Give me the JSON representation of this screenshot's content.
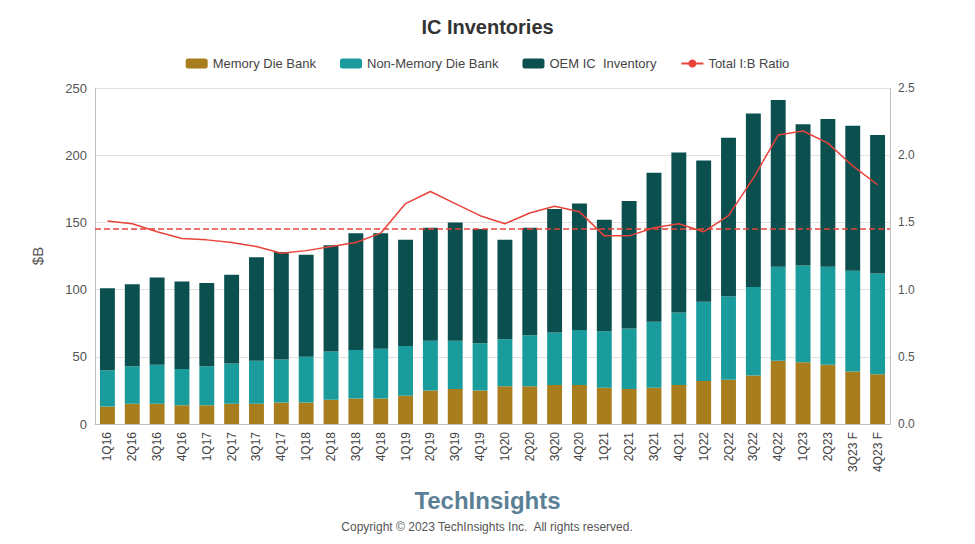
{
  "chart_data": {
    "type": "bar",
    "title": "IC Inventories",
    "y_label": "$B",
    "annotations": [
      "TechInsights",
      "Copyright © 2023 TechInsights Inc.  All rights reserved."
    ],
    "categories": [
      "1Q16",
      "2Q16",
      "3Q16",
      "4Q16",
      "1Q17",
      "2Q17",
      "3Q17",
      "4Q17",
      "1Q18",
      "2Q18",
      "3Q18",
      "4Q18",
      "1Q19",
      "2Q19",
      "3Q19",
      "4Q19",
      "1Q20",
      "2Q20",
      "3Q20",
      "4Q20",
      "1Q21",
      "2Q21",
      "3Q21",
      "4Q21",
      "1Q22",
      "2Q22",
      "3Q22",
      "4Q22",
      "1Q23",
      "2Q23",
      "3Q23 F",
      "4Q23 F"
    ],
    "stacked": true,
    "grid": true,
    "legend": "top",
    "series": [
      {
        "name": "Memory Die Bank",
        "type": "bar",
        "color": "#a87d1e",
        "values": [
          13,
          15,
          15,
          14,
          14,
          15,
          15,
          16,
          16,
          18,
          19,
          19,
          21,
          25,
          26,
          25,
          28,
          28,
          29,
          29,
          27,
          26,
          27,
          29,
          32,
          33,
          36,
          47,
          46,
          44,
          39,
          37
        ]
      },
      {
        "name": "Non-Memory Die Bank",
        "type": "bar",
        "color": "#1a9c9c",
        "values": [
          27,
          28,
          29,
          27,
          29,
          30,
          32,
          32,
          34,
          36,
          36,
          37,
          37,
          37,
          36,
          35,
          35,
          38,
          39,
          41,
          42,
          45,
          49,
          54,
          59,
          62,
          66,
          70,
          72,
          73,
          75,
          75
        ]
      },
      {
        "name": "OEM IC  Inventory",
        "type": "bar",
        "color": "#0b4f4f",
        "values": [
          61,
          61,
          65,
          65,
          62,
          66,
          77,
          80,
          76,
          79,
          87,
          86,
          79,
          84,
          88,
          85,
          74,
          80,
          92,
          94,
          83,
          95,
          111,
          119,
          105,
          118,
          129,
          124,
          105,
          110,
          108,
          103
        ]
      },
      {
        "name": "Total I:B Ratio",
        "type": "line",
        "axis": "y2",
        "color": "#e8433a",
        "values": [
          1.51,
          1.49,
          1.43,
          1.38,
          1.37,
          1.35,
          1.32,
          1.27,
          1.29,
          1.32,
          1.35,
          1.42,
          1.64,
          1.73,
          1.64,
          1.55,
          1.49,
          1.57,
          1.62,
          1.58,
          1.4,
          1.4,
          1.46,
          1.49,
          1.43,
          1.55,
          1.83,
          2.15,
          2.18,
          2.09,
          1.92,
          1.78
        ]
      }
    ],
    "reference_line": 1.45,
    "ylim": [
      0,
      250
    ],
    "yticks": [
      0,
      50,
      100,
      150,
      200,
      250
    ],
    "y2lim": [
      0,
      2.5
    ],
    "y2ticks": [
      {
        "value": 0,
        "label": "0.0"
      },
      0.5,
      {
        "value": 1,
        "label": "1.0"
      },
      1.5,
      {
        "value": 2,
        "label": "2.0"
      },
      2.5
    ]
  }
}
